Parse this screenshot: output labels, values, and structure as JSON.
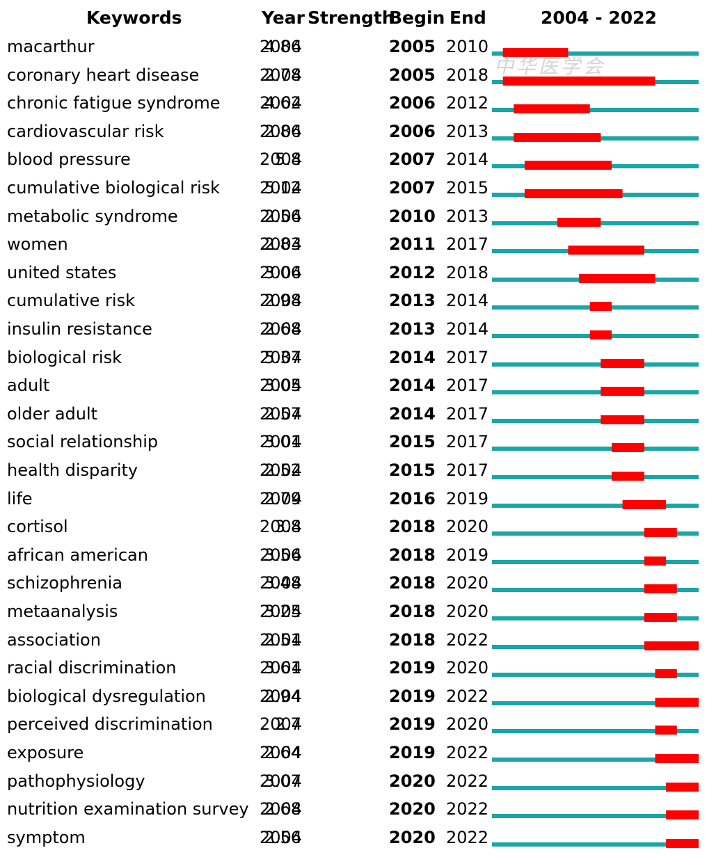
{
  "chart_data": {
    "type": "table",
    "headers": {
      "keywords": "Keywords",
      "year": "Year",
      "strength": "Strength",
      "begin": "Begin",
      "end": "End",
      "range": "2004 - 2022"
    },
    "timeline": {
      "start": 2004,
      "end": 2022
    },
    "colors": {
      "base_line": "#1aa6a6",
      "burst": "#ff0000"
    },
    "rows": [
      {
        "keyword": "macarthur",
        "year": "2004",
        "strength": "4.86",
        "begin": "2005",
        "end": "2010"
      },
      {
        "keyword": "coronary heart disease",
        "year": "2004",
        "strength": "2.78",
        "begin": "2005",
        "end": "2018"
      },
      {
        "keyword": "chronic fatigue syndrome",
        "year": "2004",
        "strength": "4.62",
        "begin": "2006",
        "end": "2012"
      },
      {
        "keyword": "cardiovascular risk",
        "year": "2004",
        "strength": "2.86",
        "begin": "2006",
        "end": "2013"
      },
      {
        "keyword": "blood pressure",
        "year": "2004",
        "strength": "5.8",
        "begin": "2007",
        "end": "2014"
      },
      {
        "keyword": "cumulative biological risk",
        "year": "2004",
        "strength": "5.12",
        "begin": "2007",
        "end": "2015"
      },
      {
        "keyword": "metabolic syndrome",
        "year": "2004",
        "strength": "2.56",
        "begin": "2010",
        "end": "2013"
      },
      {
        "keyword": "women",
        "year": "2004",
        "strength": "2.83",
        "begin": "2011",
        "end": "2017"
      },
      {
        "keyword": "united states",
        "year": "2004",
        "strength": "3.06",
        "begin": "2012",
        "end": "2018"
      },
      {
        "keyword": "cumulative risk",
        "year": "2004",
        "strength": "2.98",
        "begin": "2013",
        "end": "2014"
      },
      {
        "keyword": "insulin resistance",
        "year": "2004",
        "strength": "2.68",
        "begin": "2013",
        "end": "2014"
      },
      {
        "keyword": "biological risk",
        "year": "2004",
        "strength": "5.37",
        "begin": "2014",
        "end": "2017"
      },
      {
        "keyword": "adult",
        "year": "2004",
        "strength": "3.05",
        "begin": "2014",
        "end": "2017"
      },
      {
        "keyword": "older adult",
        "year": "2004",
        "strength": "2.57",
        "begin": "2014",
        "end": "2017"
      },
      {
        "keyword": "social relationship",
        "year": "2004",
        "strength": "3.01",
        "begin": "2015",
        "end": "2017"
      },
      {
        "keyword": "health disparity",
        "year": "2004",
        "strength": "2.52",
        "begin": "2015",
        "end": "2017"
      },
      {
        "keyword": "life",
        "year": "2004",
        "strength": "2.79",
        "begin": "2016",
        "end": "2019"
      },
      {
        "keyword": "cortisol",
        "year": "2004",
        "strength": "3.8",
        "begin": "2018",
        "end": "2020"
      },
      {
        "keyword": "african american",
        "year": "2004",
        "strength": "3.56",
        "begin": "2018",
        "end": "2019"
      },
      {
        "keyword": "schizophrenia",
        "year": "2004",
        "strength": "3.48",
        "begin": "2018",
        "end": "2020"
      },
      {
        "keyword": "metaanalysis",
        "year": "2004",
        "strength": "3.25",
        "begin": "2018",
        "end": "2020"
      },
      {
        "keyword": "association",
        "year": "2004",
        "strength": "2.51",
        "begin": "2018",
        "end": "2022"
      },
      {
        "keyword": "racial discrimination",
        "year": "2004",
        "strength": "3.61",
        "begin": "2019",
        "end": "2020"
      },
      {
        "keyword": "biological dysregulation",
        "year": "2004",
        "strength": "2.94",
        "begin": "2019",
        "end": "2022"
      },
      {
        "keyword": "perceived discrimination",
        "year": "2004",
        "strength": "2.7",
        "begin": "2019",
        "end": "2020"
      },
      {
        "keyword": "exposure",
        "year": "2004",
        "strength": "2.64",
        "begin": "2019",
        "end": "2022"
      },
      {
        "keyword": "pathophysiology",
        "year": "2004",
        "strength": "3.07",
        "begin": "2020",
        "end": "2022"
      },
      {
        "keyword": "nutrition examination survey",
        "year": "2004",
        "strength": "2.68",
        "begin": "2020",
        "end": "2022"
      },
      {
        "keyword": "symptom",
        "year": "2004",
        "strength": "2.56",
        "begin": "2020",
        "end": "2022"
      }
    ]
  },
  "watermark": "中华医学会"
}
